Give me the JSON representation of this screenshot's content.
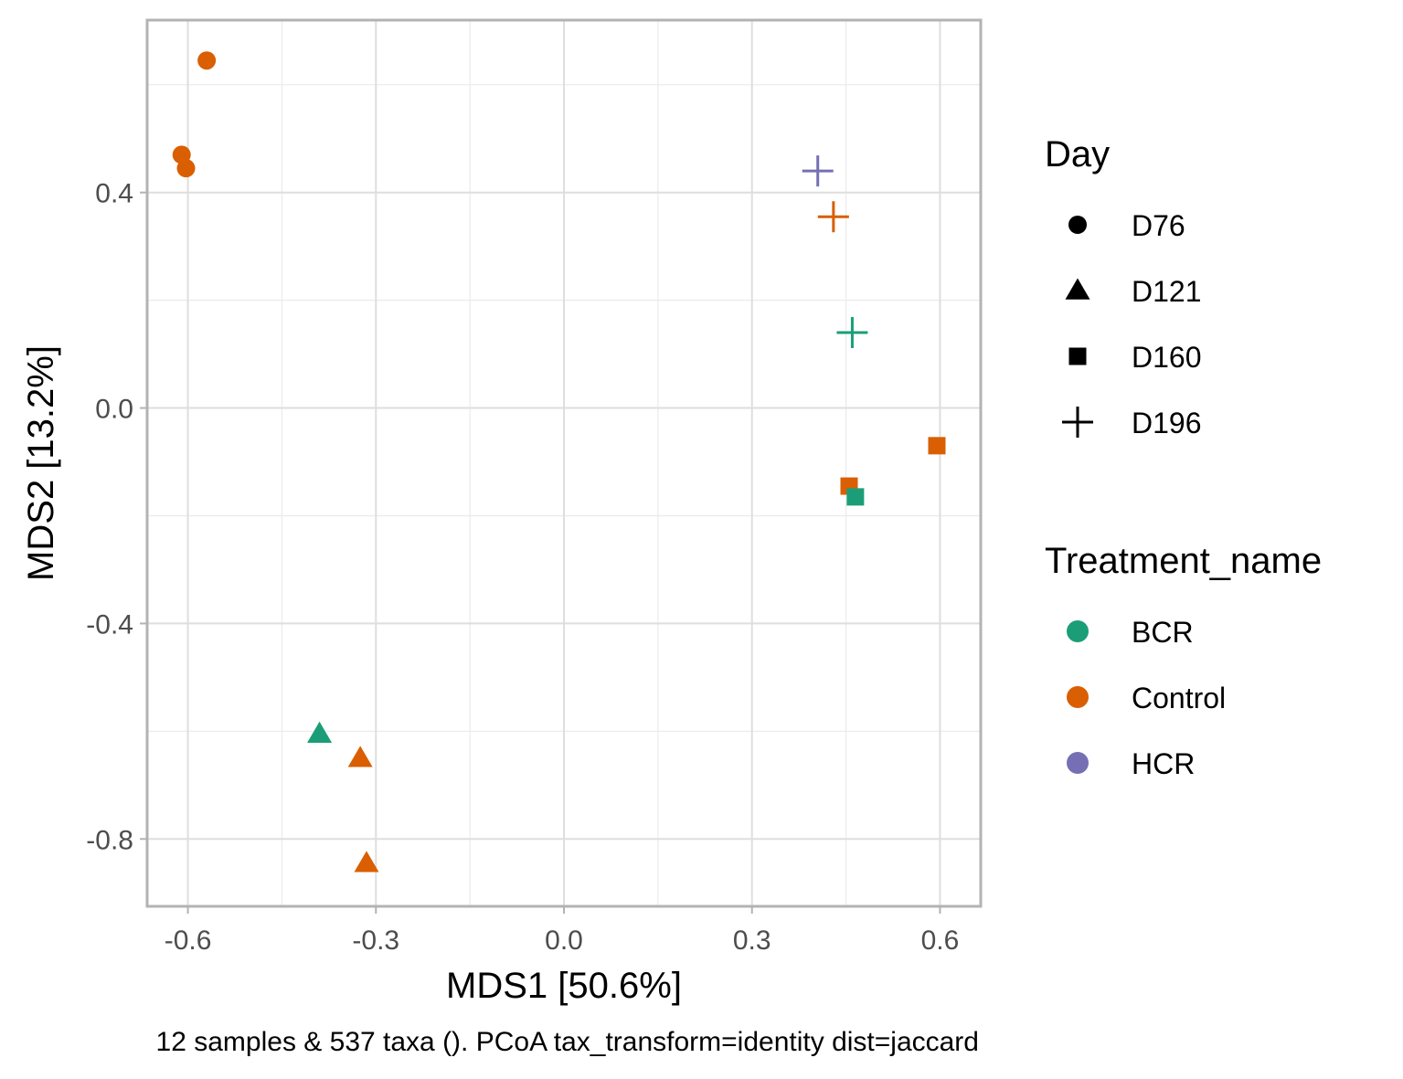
{
  "chart_data": {
    "type": "scatter",
    "xlabel": "MDS1 [50.6%]",
    "ylabel": "MDS2 [13.2%]",
    "caption": "12 samples & 537 taxa (). PCoA tax_transform=identity dist=jaccard",
    "xlim": [
      -0.665,
      0.665
    ],
    "ylim": [
      -0.925,
      0.72
    ],
    "x_ticks": [
      -0.6,
      -0.3,
      0.0,
      0.3,
      0.6
    ],
    "x_tick_labels": [
      "-0.6",
      "-0.3",
      "0.0",
      "0.3",
      "0.6"
    ],
    "y_ticks": [
      -0.8,
      -0.4,
      0.0,
      0.4
    ],
    "y_tick_labels": [
      "-0.8",
      "-0.4",
      "0.0",
      "0.4"
    ],
    "grid": true,
    "legend_placement": "right",
    "legends": [
      {
        "title": "Day",
        "items": [
          {
            "label": "D76",
            "shape": "circle"
          },
          {
            "label": "D121",
            "shape": "triangle"
          },
          {
            "label": "D160",
            "shape": "square"
          },
          {
            "label": "D196",
            "shape": "plus"
          }
        ]
      },
      {
        "title": "Treatment_name",
        "items": [
          {
            "label": "BCR",
            "color": "#1b9e77"
          },
          {
            "label": "Control",
            "color": "#d95f02"
          },
          {
            "label": "HCR",
            "color": "#7570b3"
          }
        ]
      }
    ],
    "points": [
      {
        "x": -0.57,
        "y": 0.645,
        "day": "D76",
        "treatment": "Control"
      },
      {
        "x": -0.61,
        "y": 0.47,
        "day": "D76",
        "treatment": "Control"
      },
      {
        "x": -0.603,
        "y": 0.445,
        "day": "D76",
        "treatment": "Control"
      },
      {
        "x": -0.39,
        "y": -0.605,
        "day": "D121",
        "treatment": "BCR"
      },
      {
        "x": -0.325,
        "y": -0.65,
        "day": "D121",
        "treatment": "Control"
      },
      {
        "x": -0.315,
        "y": -0.845,
        "day": "D121",
        "treatment": "Control"
      },
      {
        "x": 0.455,
        "y": -0.145,
        "day": "D160",
        "treatment": "Control"
      },
      {
        "x": 0.465,
        "y": -0.165,
        "day": "D160",
        "treatment": "BCR"
      },
      {
        "x": 0.595,
        "y": -0.07,
        "day": "D160",
        "treatment": "Control"
      },
      {
        "x": 0.405,
        "y": 0.44,
        "day": "D196",
        "treatment": "HCR"
      },
      {
        "x": 0.43,
        "y": 0.355,
        "day": "D196",
        "treatment": "Control"
      },
      {
        "x": 0.46,
        "y": 0.14,
        "day": "D196",
        "treatment": "BCR"
      }
    ]
  }
}
